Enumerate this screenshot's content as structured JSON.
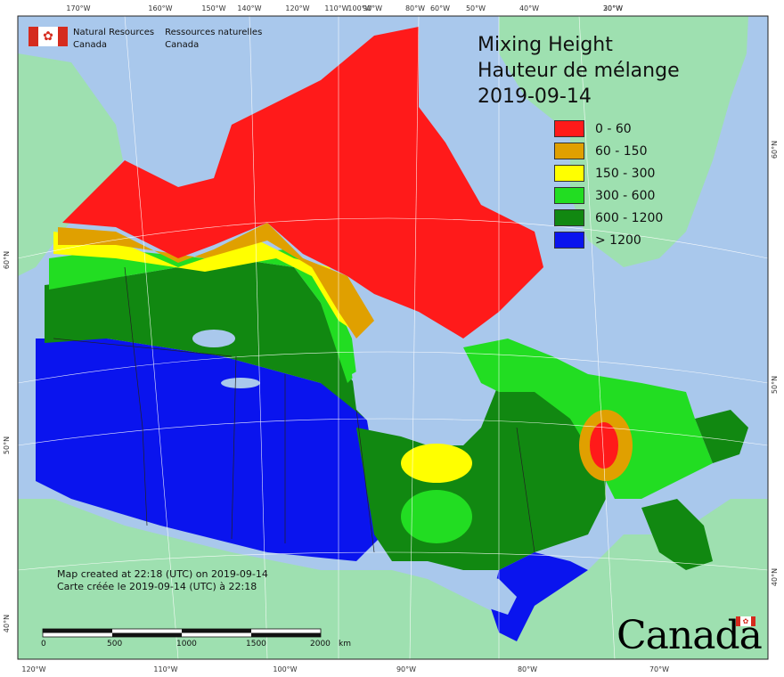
{
  "agency": {
    "line1_en": "Natural Resources",
    "line2_en": "Canada",
    "line1_fr": "Ressources naturelles",
    "line2_fr": "Canada"
  },
  "title": {
    "en": "Mixing Height",
    "fr": "Hauteur de mélange",
    "date": "2019-09-14"
  },
  "legend": [
    {
      "label": "0 - 60",
      "color": "#ff1a1a"
    },
    {
      "label": "60 - 150",
      "color": "#e0a000"
    },
    {
      "label": "150 - 300",
      "color": "#ffff00"
    },
    {
      "label": "300 - 600",
      "color": "#22dd22"
    },
    {
      "label": "600 - 1200",
      "color": "#118811"
    },
    {
      "label": "> 1200",
      "color": "#0a14ee"
    }
  ],
  "credit": {
    "line1": "Map created at 22:18 (UTC) on 2019-09-14",
    "line2": "Carte créée le 2019-09-14 (UTC) à 22:18"
  },
  "scale_bar": {
    "labels": [
      "0",
      "500",
      "1000",
      "1500",
      "2000"
    ],
    "unit": "km"
  },
  "wordmark": "Canada",
  "top_ticks": [
    "170°W",
    "160°W",
    "150°W",
    "140°W",
    "120°W",
    "110°W",
    "100°W",
    "90°W",
    "80°W",
    "60°W",
    "50°W",
    "40°W",
    "30°W",
    "20°W"
  ],
  "bottom_ticks": [
    "120°W",
    "110°W",
    "100°W",
    "90°W",
    "80°W",
    "70°W"
  ],
  "left_ticks": [
    "60°N",
    "50°N",
    "40°N"
  ],
  "right_ticks": [
    "60°N",
    "50°N",
    "40°N"
  ],
  "colors": {
    "ocean": "#a9c8ec",
    "foreign_land": "#9ee0b0",
    "lake": "#a9c8ec"
  }
}
